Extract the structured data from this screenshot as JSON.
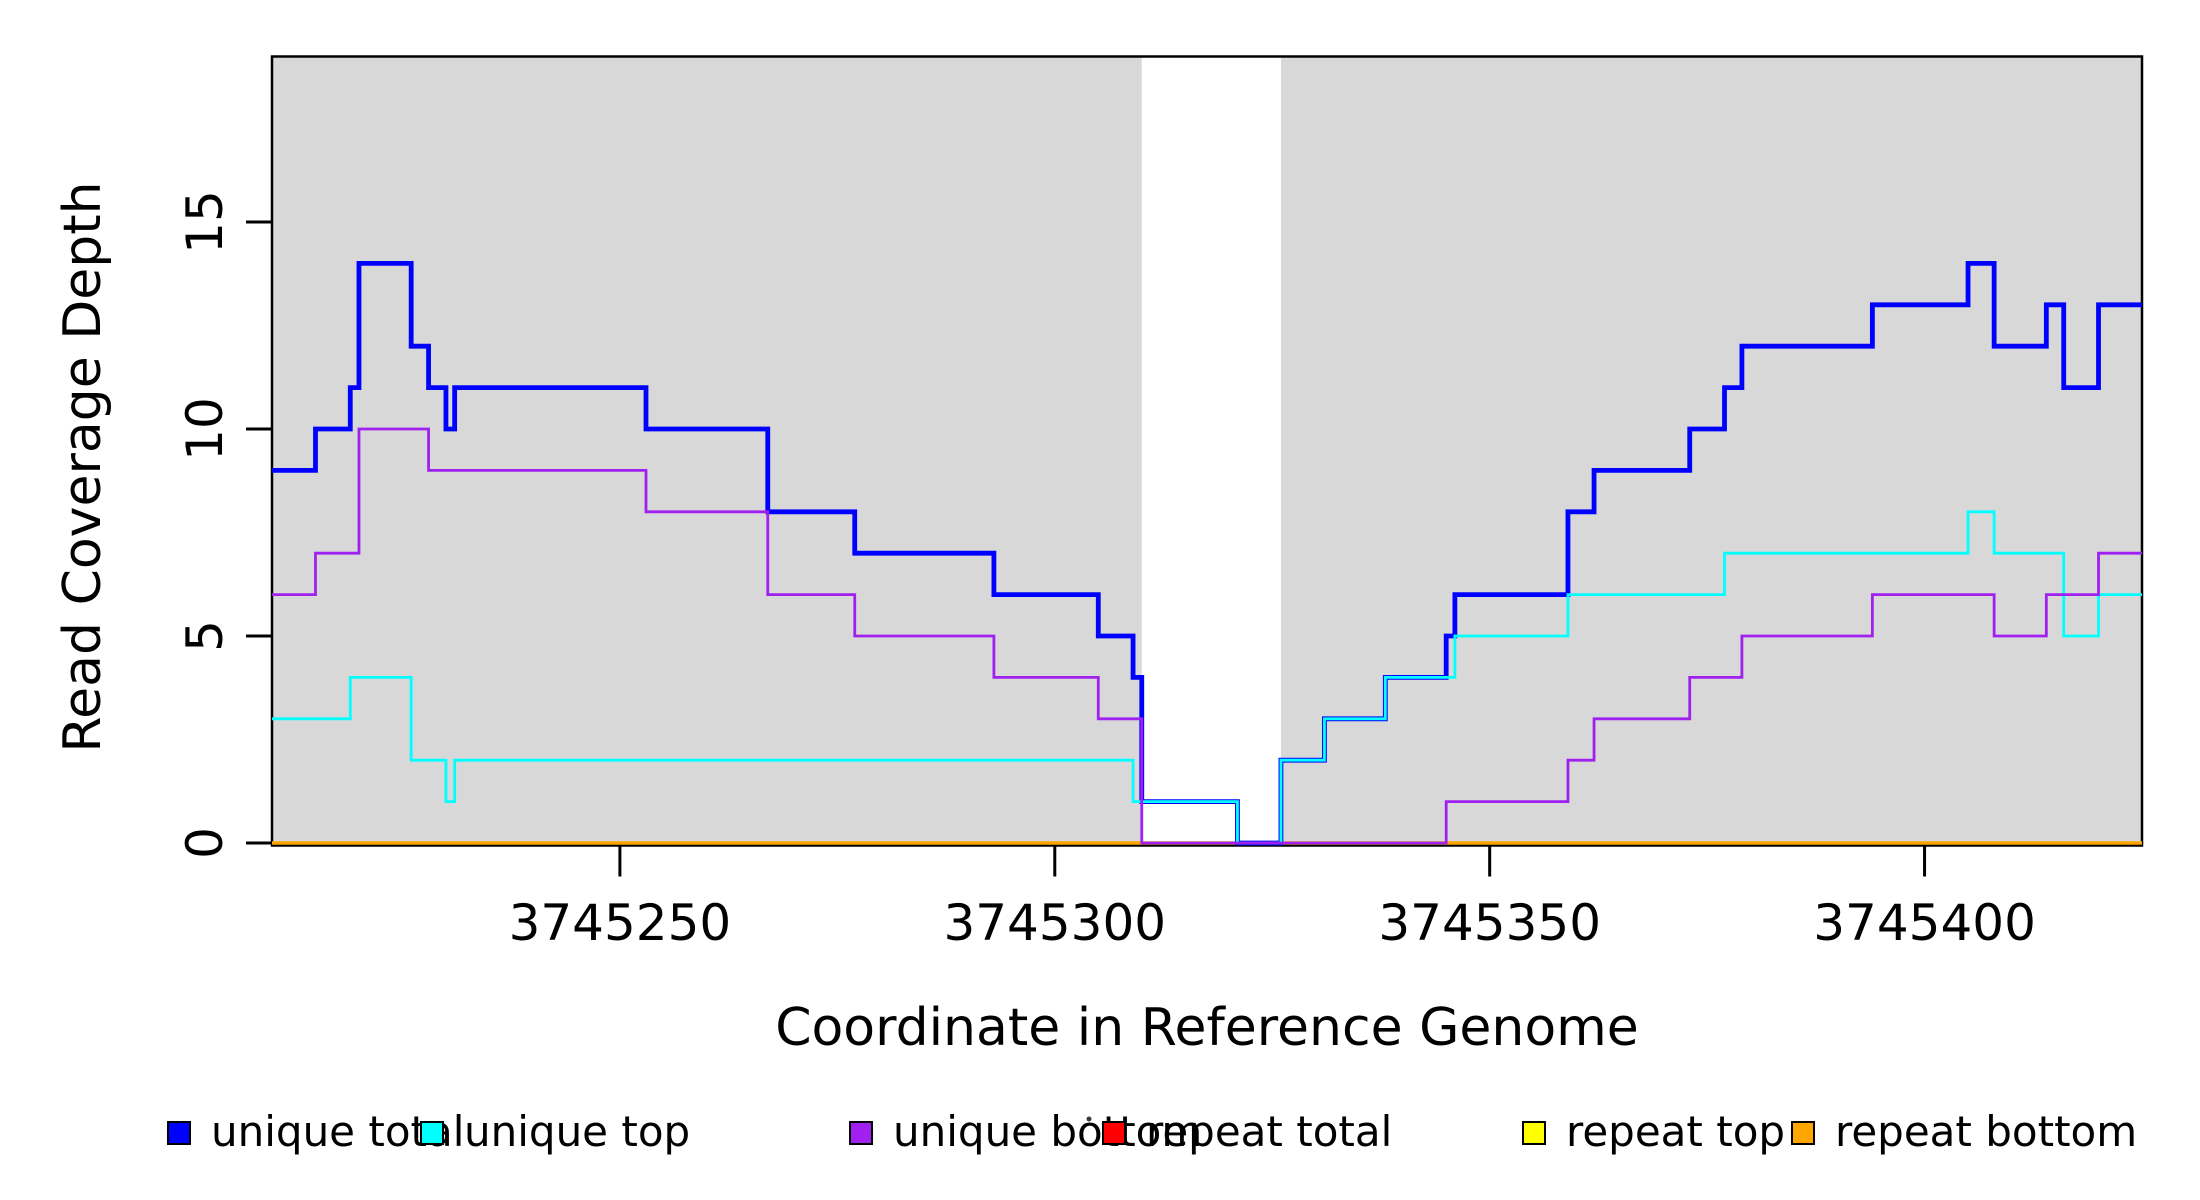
{
  "chart_data": {
    "type": "line",
    "subtype": "step",
    "title": "",
    "xlabel": "Coordinate in Reference Genome",
    "ylabel": "Read Coverage Depth",
    "xlim": [
      3745210,
      3745425
    ],
    "ylim": [
      0,
      19
    ],
    "x_ticks": [
      3745250,
      3745300,
      3745350,
      3745400
    ],
    "y_ticks": [
      0,
      5,
      10,
      15
    ],
    "grid": false,
    "legend_position": "bottom",
    "background_color": "#ffffff",
    "shaded_regions": [
      {
        "x0": 3745210,
        "x1": 3745310,
        "color": "#D8D8D8",
        "meaning": "unique-mappability region"
      },
      {
        "x0": 3745326,
        "x1": 3745425,
        "color": "#D8D8D8",
        "meaning": "unique-mappability region"
      }
    ],
    "series": [
      {
        "name": "repeat total",
        "color": "#FF0000",
        "stroke_width": 2.5,
        "points": [
          [
            3745210,
            0
          ]
        ]
      },
      {
        "name": "repeat top",
        "color": "#FFFF00",
        "stroke_width": 2.5,
        "points": [
          [
            3745210,
            0
          ]
        ]
      },
      {
        "name": "repeat bottom",
        "color": "#FFA500",
        "stroke_width": 3.5,
        "points": [
          [
            3745210,
            0
          ]
        ]
      },
      {
        "name": "unique total",
        "color": "#0000FF",
        "stroke_width": 4.8,
        "points": [
          [
            3745210,
            9
          ],
          [
            3745215,
            10
          ],
          [
            3745219,
            11
          ],
          [
            3745220,
            14
          ],
          [
            3745226,
            12
          ],
          [
            3745228,
            11
          ],
          [
            3745230,
            10
          ],
          [
            3745231,
            11
          ],
          [
            3745253,
            10
          ],
          [
            3745267,
            8
          ],
          [
            3745277,
            7
          ],
          [
            3745293,
            6
          ],
          [
            3745305,
            5
          ],
          [
            3745309,
            4
          ],
          [
            3745310,
            1
          ],
          [
            3745321,
            0
          ],
          [
            3745326,
            2
          ],
          [
            3745331,
            3
          ],
          [
            3745338,
            4
          ],
          [
            3745345,
            5
          ],
          [
            3745346,
            6
          ],
          [
            3745359,
            8
          ],
          [
            3745362,
            9
          ],
          [
            3745373,
            10
          ],
          [
            3745377,
            11
          ],
          [
            3745379,
            12
          ],
          [
            3745394,
            13
          ],
          [
            3745405,
            14
          ],
          [
            3745408,
            12
          ],
          [
            3745414,
            13
          ],
          [
            3745416,
            11
          ],
          [
            3745420,
            13
          ]
        ]
      },
      {
        "name": "unique top",
        "color": "#00FFFF",
        "stroke_width": 2.8,
        "points": [
          [
            3745210,
            3
          ],
          [
            3745219,
            4
          ],
          [
            3745226,
            2
          ],
          [
            3745230,
            1
          ],
          [
            3745231,
            2
          ],
          [
            3745309,
            1
          ],
          [
            3745321,
            0
          ],
          [
            3745326,
            2
          ],
          [
            3745331,
            3
          ],
          [
            3745338,
            4
          ],
          [
            3745346,
            5
          ],
          [
            3745359,
            6
          ],
          [
            3745377,
            7
          ],
          [
            3745405,
            8
          ],
          [
            3745408,
            7
          ],
          [
            3745416,
            5
          ],
          [
            3745420,
            6
          ]
        ]
      },
      {
        "name": "unique bottom",
        "color": "#A020F0",
        "stroke_width": 2.8,
        "points": [
          [
            3745210,
            6
          ],
          [
            3745215,
            7
          ],
          [
            3745220,
            10
          ],
          [
            3745228,
            9
          ],
          [
            3745253,
            8
          ],
          [
            3745267,
            6
          ],
          [
            3745277,
            5
          ],
          [
            3745293,
            4
          ],
          [
            3745305,
            3
          ],
          [
            3745310,
            0
          ],
          [
            3745345,
            1
          ],
          [
            3745359,
            2
          ],
          [
            3745362,
            3
          ],
          [
            3745373,
            4
          ],
          [
            3745379,
            5
          ],
          [
            3745394,
            6
          ],
          [
            3745408,
            5
          ],
          [
            3745414,
            6
          ],
          [
            3745420,
            7
          ]
        ]
      }
    ]
  },
  "legend": {
    "items": [
      {
        "label": "unique total",
        "color": "#0000FF"
      },
      {
        "label": "unique top",
        "color": "#00FFFF"
      },
      {
        "label": "unique bottom",
        "color": "#A020F0"
      },
      {
        "label": "repeat total",
        "color": "#FF0000"
      },
      {
        "label": "repeat top",
        "color": "#FFFF00"
      },
      {
        "label": "repeat bottom",
        "color": "#FFA500"
      }
    ],
    "stray_dot_color": "#3a3a3a"
  }
}
